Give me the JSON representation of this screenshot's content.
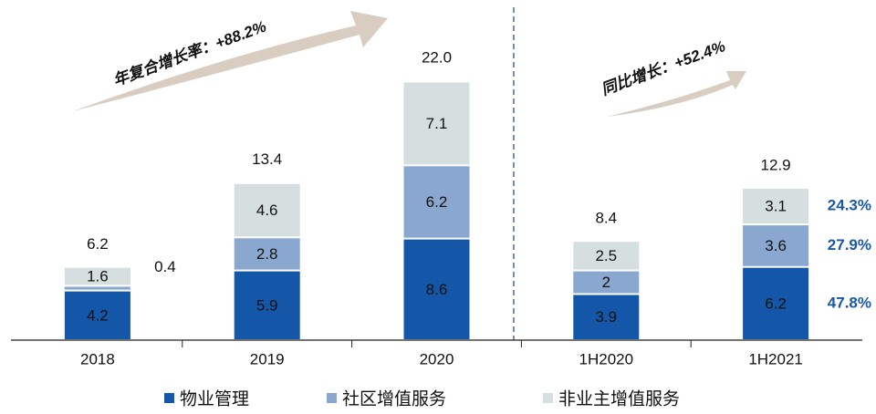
{
  "chart_data": {
    "type": "stacked_bar",
    "categories": [
      "2018",
      "2019",
      "2020",
      "1H2020",
      "1H2021"
    ],
    "series": [
      {
        "name": "物业管理",
        "color": "#1457a8",
        "values": [
          4.2,
          5.9,
          8.6,
          3.9,
          6.2
        ],
        "share": 47.8,
        "share_label": "47.8%"
      },
      {
        "name": "社区增值服务",
        "color": "#8aa8cf",
        "values": [
          0.4,
          2.8,
          6.2,
          2.0,
          3.6
        ],
        "share": 27.9,
        "share_label": "27.9%"
      },
      {
        "name": "非业主增值服务",
        "color": "#d5dfe0",
        "values": [
          1.6,
          4.6,
          7.1,
          2.5,
          3.1
        ],
        "share": 24.3,
        "share_label": "24.3%"
      }
    ],
    "totals": {
      "values": [
        6.2,
        13.4,
        22.0,
        8.4,
        12.9
      ],
      "value_labels": [
        "6.2",
        "13.4",
        "22.0",
        "8.4",
        "12.9"
      ]
    },
    "annotations": [
      "年复合增长率：+88.2%",
      "同比增长：+52.4%"
    ]
  }
}
